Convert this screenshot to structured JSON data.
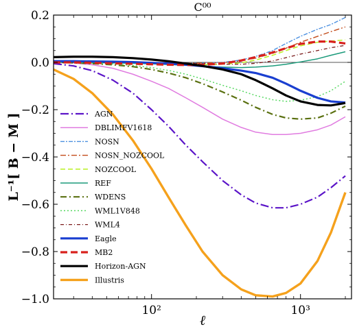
{
  "chart_data": {
    "type": "line",
    "title": "C⁰⁰",
    "xlabel": "ℓ",
    "ylabel": "L⁻¹[ B − M ]",
    "xscale": "log",
    "xlim": [
      22,
      2200
    ],
    "ylim": [
      -1.0,
      0.2
    ],
    "x_ticks": [
      {
        "value": 100,
        "label": "10²"
      },
      {
        "value": 1000,
        "label": "10³"
      }
    ],
    "y_ticks": [
      {
        "value": 0.2,
        "label": "0.2"
      },
      {
        "value": 0.0,
        "label": "0.0"
      },
      {
        "value": -0.2,
        "label": "−0.2"
      },
      {
        "value": -0.4,
        "label": "−0.4"
      },
      {
        "value": -0.6,
        "label": "−0.6"
      },
      {
        "value": -0.8,
        "label": "−0.8"
      },
      {
        "value": -1.0,
        "label": "−1.0"
      }
    ],
    "reference_line": 0.0,
    "legend_position": "lower-left",
    "grid": false,
    "x": [
      22,
      30,
      40,
      55,
      75,
      100,
      130,
      170,
      220,
      300,
      400,
      500,
      650,
      800,
      1000,
      1300,
      1600,
      2000
    ],
    "series": [
      {
        "name": "AGN",
        "color": "#5b14c8",
        "dash": "12,4,2,4",
        "width": 2.2,
        "values": [
          -0.005,
          -0.015,
          -0.035,
          -0.075,
          -0.13,
          -0.2,
          -0.27,
          -0.35,
          -0.42,
          -0.5,
          -0.56,
          -0.595,
          -0.615,
          -0.615,
          -0.6,
          -0.57,
          -0.53,
          -0.48
        ]
      },
      {
        "name": "DBLIMFV1618",
        "color": "#e07be0",
        "dash": "",
        "width": 1.5,
        "values": [
          0.0,
          -0.003,
          -0.01,
          -0.025,
          -0.05,
          -0.08,
          -0.11,
          -0.15,
          -0.19,
          -0.24,
          -0.275,
          -0.295,
          -0.305,
          -0.305,
          -0.3,
          -0.285,
          -0.265,
          -0.23
        ]
      },
      {
        "name": "NOSN",
        "color": "#4a8fe0",
        "dash": "6,2,2,2",
        "width": 1.4,
        "values": [
          0.0,
          0.0,
          0.0,
          -0.001,
          -0.002,
          -0.003,
          -0.004,
          -0.004,
          -0.003,
          0.0,
          0.01,
          0.025,
          0.05,
          0.08,
          0.11,
          0.14,
          0.16,
          0.19
        ]
      },
      {
        "name": "NOSN_NOZCOOL",
        "color": "#c24a18",
        "dash": "8,3,2,3",
        "width": 1.4,
        "values": [
          0.0,
          0.0,
          0.0,
          -0.001,
          -0.002,
          -0.003,
          -0.004,
          -0.004,
          -0.003,
          -0.001,
          0.006,
          0.018,
          0.038,
          0.06,
          0.085,
          0.11,
          0.13,
          0.15
        ]
      },
      {
        "name": "NOZCOOL",
        "color": "#b8f020",
        "dash": "7,4",
        "width": 1.5,
        "values": [
          0.0,
          0.0,
          0.0,
          -0.001,
          -0.002,
          -0.004,
          -0.006,
          -0.008,
          -0.009,
          -0.008,
          -0.002,
          0.01,
          0.03,
          0.05,
          0.07,
          0.085,
          0.09,
          0.095
        ]
      },
      {
        "name": "REF",
        "color": "#1a9a7a",
        "dash": "",
        "width": 1.5,
        "values": [
          0.0,
          0.0,
          -0.001,
          -0.002,
          -0.004,
          -0.006,
          -0.009,
          -0.012,
          -0.016,
          -0.02,
          -0.022,
          -0.02,
          -0.015,
          -0.008,
          0.002,
          0.015,
          0.03,
          0.045
        ]
      },
      {
        "name": "WDENS",
        "color": "#5a7010",
        "dash": "9,4,2,4",
        "width": 2.2,
        "values": [
          0.0,
          -0.002,
          -0.005,
          -0.01,
          -0.018,
          -0.03,
          -0.045,
          -0.065,
          -0.09,
          -0.125,
          -0.16,
          -0.19,
          -0.22,
          -0.235,
          -0.24,
          -0.235,
          -0.215,
          -0.185
        ]
      },
      {
        "name": "WML1V848",
        "color": "#55d860",
        "dash": "2,3",
        "width": 1.5,
        "values": [
          0.0,
          -0.001,
          -0.003,
          -0.007,
          -0.013,
          -0.022,
          -0.034,
          -0.05,
          -0.07,
          -0.097,
          -0.12,
          -0.14,
          -0.158,
          -0.165,
          -0.16,
          -0.145,
          -0.12,
          -0.08
        ]
      },
      {
        "name": "WML4",
        "color": "#7a1a1a",
        "dash": "5,3,1,3",
        "width": 1.3,
        "values": [
          0.0,
          0.0,
          0.0,
          -0.001,
          -0.002,
          -0.002,
          -0.003,
          -0.004,
          -0.006,
          -0.008,
          -0.008,
          -0.004,
          0.006,
          0.02,
          0.035,
          0.05,
          0.062,
          0.072
        ]
      },
      {
        "name": "Eagle",
        "color": "#1a3fd0",
        "dash": "",
        "width": 3.2,
        "values": [
          0.005,
          0.005,
          0.004,
          0.003,
          0.001,
          -0.002,
          -0.005,
          -0.01,
          -0.016,
          -0.025,
          -0.035,
          -0.045,
          -0.065,
          -0.09,
          -0.12,
          -0.15,
          -0.165,
          -0.17
        ]
      },
      {
        "name": "MB2",
        "color": "#d8201c",
        "dash": "10,5",
        "width": 3.2,
        "values": [
          0.0,
          0.0,
          -0.002,
          -0.004,
          -0.006,
          -0.008,
          -0.01,
          -0.011,
          -0.01,
          -0.005,
          0.008,
          0.022,
          0.042,
          0.06,
          0.078,
          0.088,
          0.088,
          0.08
        ]
      },
      {
        "name": "Horizon-AGN",
        "color": "#000000",
        "dash": "",
        "width": 3.2,
        "values": [
          0.022,
          0.024,
          0.024,
          0.022,
          0.018,
          0.012,
          0.005,
          -0.005,
          -0.015,
          -0.03,
          -0.05,
          -0.075,
          -0.11,
          -0.14,
          -0.165,
          -0.18,
          -0.182,
          -0.172
        ]
      },
      {
        "name": "Illustris",
        "color": "#f5a11c",
        "dash": "",
        "width": 3.4,
        "values": [
          -0.03,
          -0.07,
          -0.13,
          -0.22,
          -0.33,
          -0.45,
          -0.57,
          -0.69,
          -0.8,
          -0.9,
          -0.96,
          -0.985,
          -0.99,
          -0.975,
          -0.935,
          -0.84,
          -0.72,
          -0.55
        ]
      }
    ]
  }
}
